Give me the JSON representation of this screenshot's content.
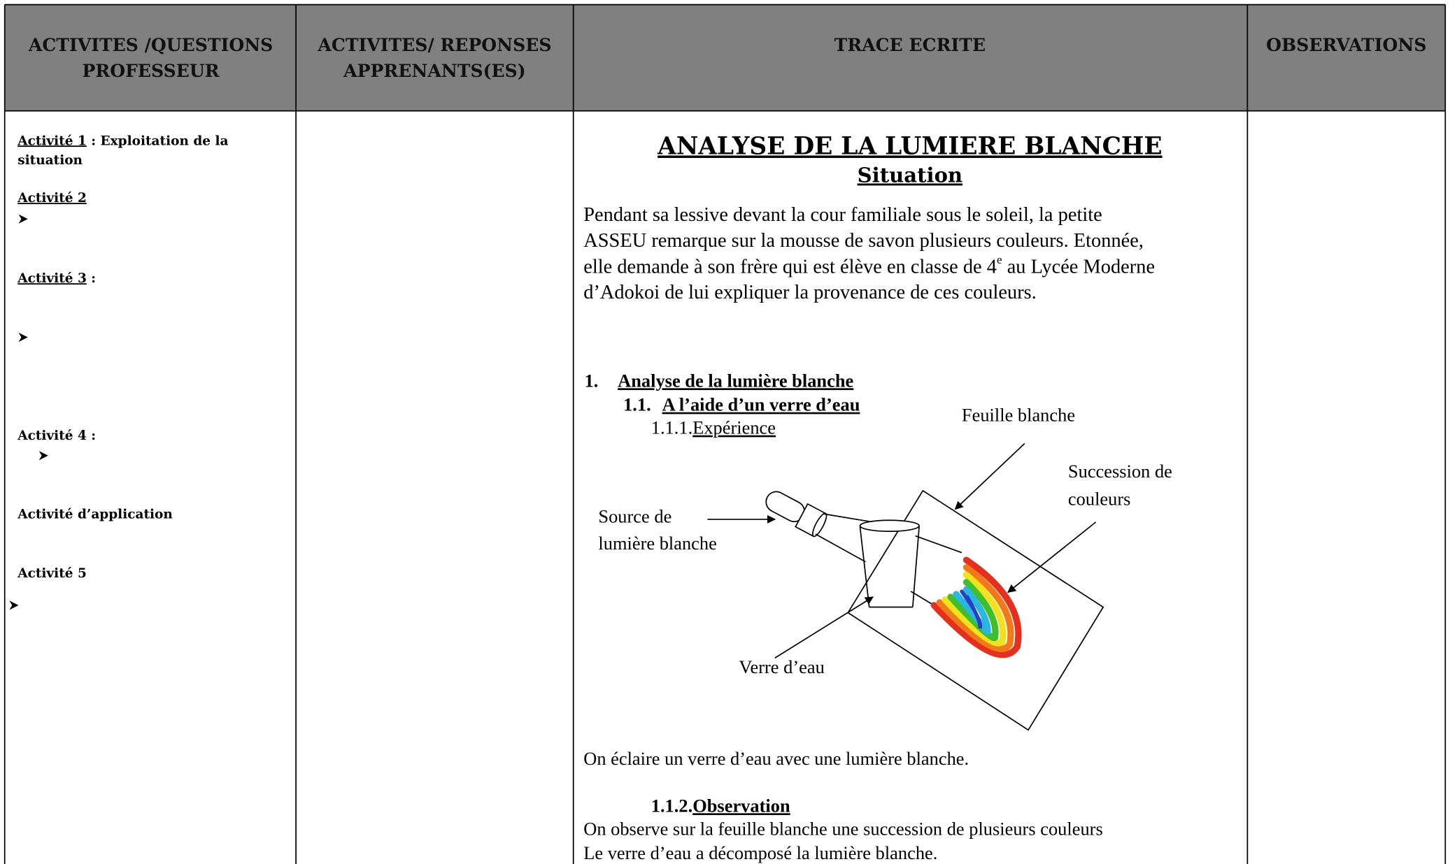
{
  "table": {
    "headers": [
      [
        "ACTIVITES /QUESTIONS",
        "PROFESSEUR"
      ],
      [
        "ACTIVITES/ REPONSES",
        "APPRENANTS(ES)"
      ],
      [
        "TRACE ECRITE"
      ],
      [
        "OBSERVATIONS"
      ]
    ],
    "activities": [
      {
        "label": "Activité 1",
        "text": [
          " : Exploitation de la",
          "situation"
        ]
      },
      {
        "label": "Activité 2"
      },
      {
        "label": "Activité 3",
        "text": [
          " :"
        ]
      },
      {
        "label": "Activité 4 :"
      },
      {
        "label": "Activité d’application"
      },
      {
        "label": "Activité 5"
      }
    ],
    "trace": {
      "title": "ANALYSE DE LA LUMIERE BLANCHE",
      "subtitle": "Situation",
      "paragraph": [
        [
          "Pendant sa lessive devant la cour familiale sous le soleil, la petite"
        ],
        [
          "ASSEU remarque sur la mousse de savon plusieurs couleurs. Etonnée,"
        ],
        [
          "elle demande à son frère qui est élève en classe de 4",
          "e",
          " au Lycée Moderne"
        ],
        [
          "d’Adokoi de lui expliquer la provenance de ces couleurs."
        ]
      ],
      "section": {
        "number": "1.",
        "title": "Analyse de la lumière blanche"
      },
      "subsection": {
        "number": "1.1.",
        "title": "A l’aide d’un verre d’eau"
      },
      "experiment": {
        "number": "1.1.1.",
        "title": "Expérience"
      },
      "diagram_labels": {
        "sheet": "Feuille blanche",
        "colors": [
          "Succession de",
          "couleurs"
        ],
        "source": [
          "Source de",
          "lumière blanche"
        ],
        "glass": "Verre d’eau"
      },
      "experiment_text": "On éclaire un verre d’eau avec une lumière blanche.",
      "observation": {
        "number": "1.1.2.",
        "title": "Observation"
      },
      "observation_text": [
        "On observe sur la feuille blanche une succession de plusieurs couleurs",
        "Le verre d’eau a décomposé la lumière blanche."
      ]
    }
  }
}
